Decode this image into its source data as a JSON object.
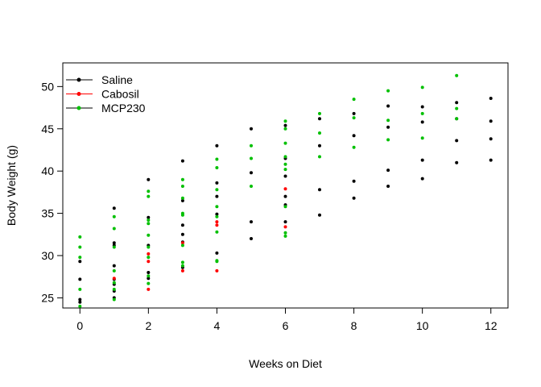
{
  "chart_data": {
    "type": "scatter",
    "xlabel": "Weeks on Diet",
    "ylabel": "Body Weight (g)",
    "xlim": [
      -0.5,
      12.5
    ],
    "ylim": [
      23.8,
      52.8
    ],
    "xticks": [
      0,
      2,
      4,
      6,
      8,
      10,
      12
    ],
    "yticks": [
      25,
      30,
      35,
      40,
      45,
      50
    ],
    "grid": false,
    "legend_position": "top-left",
    "legend_line_color": "#000000",
    "series": [
      {
        "name": "Saline",
        "color": "#000000",
        "points": [
          [
            0,
            24.5
          ],
          [
            0,
            24.8
          ],
          [
            0,
            27.2
          ],
          [
            0,
            29.3
          ],
          [
            1,
            25.0
          ],
          [
            1,
            25.8
          ],
          [
            1,
            26.6
          ],
          [
            1,
            27.2
          ],
          [
            1,
            28.8
          ],
          [
            1,
            31.2
          ],
          [
            1,
            31.5
          ],
          [
            1,
            35.6
          ],
          [
            2,
            27.3
          ],
          [
            2,
            28.0
          ],
          [
            2,
            31.2
          ],
          [
            2,
            34.5
          ],
          [
            2,
            39.0
          ],
          [
            3,
            28.6
          ],
          [
            3,
            31.6
          ],
          [
            3,
            32.5
          ],
          [
            3,
            33.6
          ],
          [
            3,
            36.5
          ],
          [
            3,
            41.2
          ],
          [
            4,
            30.3
          ],
          [
            4,
            34.9
          ],
          [
            4,
            37.0
          ],
          [
            4,
            38.6
          ],
          [
            4,
            43.0
          ],
          [
            5,
            32.0
          ],
          [
            5,
            34.0
          ],
          [
            5,
            39.8
          ],
          [
            5,
            45.0
          ],
          [
            6,
            34.0
          ],
          [
            6,
            36.0
          ],
          [
            6,
            37.0
          ],
          [
            6,
            39.4
          ],
          [
            6,
            41.5
          ],
          [
            6,
            45.4
          ],
          [
            7,
            34.8
          ],
          [
            7,
            37.8
          ],
          [
            7,
            43.0
          ],
          [
            7,
            46.2
          ],
          [
            8,
            36.8
          ],
          [
            8,
            38.8
          ],
          [
            8,
            44.2
          ],
          [
            8,
            46.8
          ],
          [
            9,
            38.2
          ],
          [
            9,
            40.1
          ],
          [
            9,
            45.2
          ],
          [
            9,
            47.7
          ],
          [
            10,
            39.1
          ],
          [
            10,
            41.3
          ],
          [
            10,
            45.8
          ],
          [
            10,
            47.6
          ],
          [
            11,
            41.0
          ],
          [
            11,
            43.6
          ],
          [
            11,
            46.2
          ],
          [
            11,
            48.1
          ],
          [
            12,
            41.3
          ],
          [
            12,
            43.8
          ],
          [
            12,
            45.9
          ],
          [
            12,
            48.6
          ]
        ]
      },
      {
        "name": "Cabosil",
        "color": "#ff0000",
        "points": [
          [
            1,
            27.3
          ],
          [
            2,
            26.0
          ],
          [
            2,
            29.3
          ],
          [
            2,
            30.2
          ],
          [
            3,
            28.2
          ],
          [
            3,
            31.5
          ],
          [
            4,
            28.2
          ],
          [
            4,
            33.6
          ],
          [
            4,
            34.0
          ],
          [
            6,
            33.4
          ],
          [
            6,
            37.9
          ]
        ]
      },
      {
        "name": "MCP230",
        "color": "#00c000",
        "points": [
          [
            0,
            24.0
          ],
          [
            0,
            26.0
          ],
          [
            0,
            29.8
          ],
          [
            0,
            31.0
          ],
          [
            0,
            32.2
          ],
          [
            1,
            24.8
          ],
          [
            1,
            26.0
          ],
          [
            1,
            26.8
          ],
          [
            1,
            28.2
          ],
          [
            1,
            31.0
          ],
          [
            1,
            33.2
          ],
          [
            1,
            34.6
          ],
          [
            2,
            26.7
          ],
          [
            2,
            27.6
          ],
          [
            2,
            29.8
          ],
          [
            2,
            31.0
          ],
          [
            2,
            32.4
          ],
          [
            2,
            33.8
          ],
          [
            2,
            34.2
          ],
          [
            2,
            37.0
          ],
          [
            2,
            37.6
          ],
          [
            3,
            28.8
          ],
          [
            3,
            29.2
          ],
          [
            3,
            31.2
          ],
          [
            3,
            34.8
          ],
          [
            3,
            35.0
          ],
          [
            3,
            36.8
          ],
          [
            3,
            38.2
          ],
          [
            3,
            39.0
          ],
          [
            4,
            29.3
          ],
          [
            4,
            29.4
          ],
          [
            4,
            32.8
          ],
          [
            4,
            34.6
          ],
          [
            4,
            35.8
          ],
          [
            4,
            37.8
          ],
          [
            4,
            40.4
          ],
          [
            4,
            41.4
          ],
          [
            5,
            38.2
          ],
          [
            5,
            41.5
          ],
          [
            5,
            43.0
          ],
          [
            6,
            32.3
          ],
          [
            6,
            32.7
          ],
          [
            6,
            35.8
          ],
          [
            6,
            40.2
          ],
          [
            6,
            40.8
          ],
          [
            6,
            41.7
          ],
          [
            6,
            43.3
          ],
          [
            6,
            45.0
          ],
          [
            6,
            45.9
          ],
          [
            7,
            41.7
          ],
          [
            7,
            44.5
          ],
          [
            7,
            46.8
          ],
          [
            8,
            42.8
          ],
          [
            8,
            46.3
          ],
          [
            8,
            48.5
          ],
          [
            9,
            43.7
          ],
          [
            9,
            46.0
          ],
          [
            9,
            49.5
          ],
          [
            10,
            43.9
          ],
          [
            10,
            46.8
          ],
          [
            10,
            49.9
          ],
          [
            11,
            46.2
          ],
          [
            11,
            47.4
          ],
          [
            11,
            51.3
          ]
        ]
      }
    ]
  }
}
